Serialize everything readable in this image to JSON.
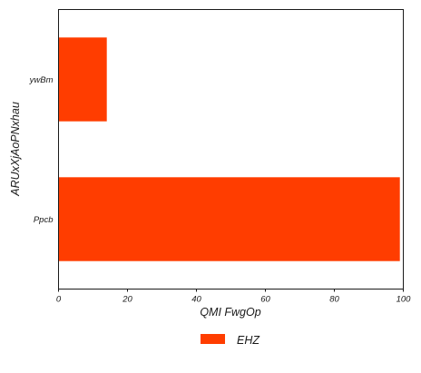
{
  "chart_data": {
    "type": "bar",
    "orientation": "horizontal",
    "categories": [
      "ywBm",
      "Ppcb"
    ],
    "series": [
      {
        "name": "EHZ",
        "values": [
          14,
          99
        ],
        "color": "#ff3d00"
      }
    ],
    "xlabel": "QMI FwgOp",
    "ylabel": "ARUxXjAoPNxhau",
    "xlim": [
      0,
      100
    ],
    "xticks": [
      "0",
      "20",
      "40",
      "60",
      "80",
      "100"
    ],
    "grid": false,
    "legend": "bottom-center"
  }
}
